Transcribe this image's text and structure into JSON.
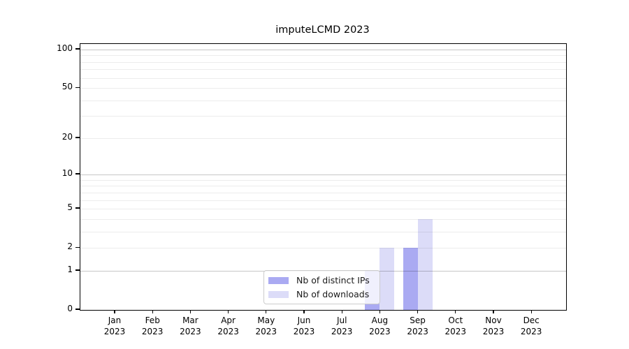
{
  "title": "imputeLCMD 2023",
  "colors": {
    "bar_distinct_ips": "#aaaaf2",
    "bar_downloads": "#dcdcf8",
    "axis": "#000000",
    "grid_major": "rgba(0,0,0,0.22)",
    "grid_minor": "rgba(0,0,0,0.075)",
    "legend_border": "#cccccc"
  },
  "legend": {
    "items": [
      {
        "label": "Nb of distinct IPs",
        "swatch": "bar_distinct_ips"
      },
      {
        "label": "Nb of downloads",
        "swatch": "bar_downloads"
      }
    ],
    "position": "bottom-center"
  },
  "chart_data": {
    "type": "bar",
    "title": "imputeLCMD 2023",
    "categories": [
      "Jan 2023",
      "Feb 2023",
      "Mar 2023",
      "Apr 2023",
      "May 2023",
      "Jun 2023",
      "Jul 2023",
      "Aug 2023",
      "Sep 2023",
      "Oct 2023",
      "Nov 2023",
      "Dec 2023"
    ],
    "series": [
      {
        "name": "Nb of distinct IPs",
        "color": "#aaaaf2",
        "values": [
          0,
          0,
          0,
          0,
          0,
          0,
          0,
          1,
          2,
          0,
          0,
          0
        ]
      },
      {
        "name": "Nb of downloads",
        "color": "#dcdcf8",
        "values": [
          0,
          0,
          0,
          0,
          0,
          0,
          0,
          2,
          4,
          0,
          0,
          0
        ]
      }
    ],
    "xlabel": "",
    "ylabel": "",
    "y_scale": "log1p",
    "ylim": [
      0,
      110
    ],
    "y_ticks": [
      0,
      1,
      2,
      5,
      10,
      20,
      50,
      100
    ],
    "y_major_gridlines": [
      1,
      10,
      100
    ],
    "y_minor_gridlines": [
      2,
      3,
      4,
      5,
      6,
      7,
      8,
      9,
      20,
      30,
      40,
      50,
      60,
      70,
      80,
      90
    ],
    "grid": true,
    "legend_position": "bottom-center"
  }
}
